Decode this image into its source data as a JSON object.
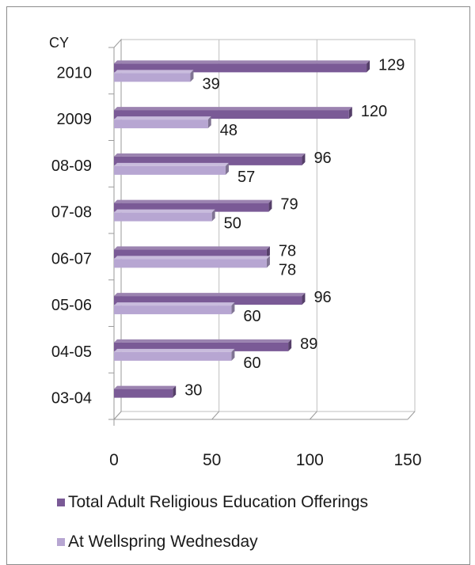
{
  "chart_data": {
    "type": "bar",
    "orientation": "horizontal",
    "style": "3d-clustered",
    "category_axis_label": "CY",
    "categories": [
      "2010",
      "2009",
      "08-09",
      "07-08",
      "06-07",
      "05-06",
      "04-05",
      "03-04"
    ],
    "series": [
      {
        "name": "Total Adult Religious Education Offerings",
        "color": "#7a5a96",
        "values": [
          129,
          120,
          96,
          79,
          78,
          96,
          89,
          30
        ]
      },
      {
        "name": "At Wellspring Wednesday",
        "color": "#b7a6d2",
        "values": [
          39,
          48,
          57,
          50,
          78,
          60,
          60,
          null
        ]
      }
    ],
    "x_ticks": [
      0,
      50,
      100,
      150
    ],
    "xlim": [
      0,
      150
    ],
    "grid": "vertical",
    "legend_position": "bottom"
  }
}
